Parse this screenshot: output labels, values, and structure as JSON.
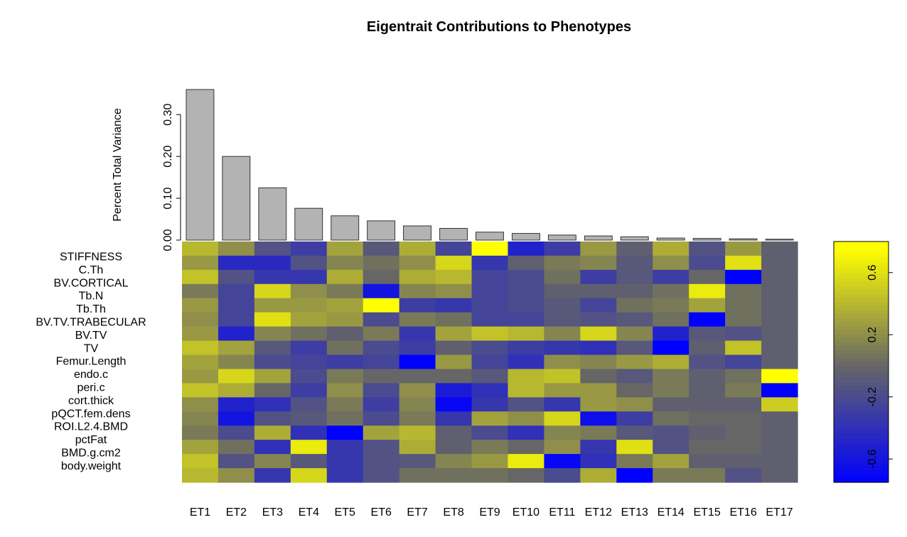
{
  "chart_data": {
    "type": "heatmap",
    "title": "Eigentrait Contributions to Phenotypes",
    "x_categories": [
      "ET1",
      "ET2",
      "ET3",
      "ET4",
      "ET5",
      "ET6",
      "ET7",
      "ET8",
      "ET9",
      "ET10",
      "ET11",
      "ET12",
      "ET13",
      "ET14",
      "ET15",
      "ET16",
      "ET17"
    ],
    "bar_panel": {
      "type": "bar",
      "ylabel": "Percent Total Variance",
      "ylim": [
        0,
        0.36
      ],
      "yticks": [
        "0.00",
        "0.10",
        "0.20",
        "0.30"
      ],
      "ytick_values": [
        0,
        0.1,
        0.2,
        0.3
      ],
      "values": [
        0.36,
        0.2,
        0.125,
        0.076,
        0.058,
        0.046,
        0.034,
        0.028,
        0.019,
        0.016,
        0.012,
        0.01,
        0.008,
        0.005,
        0.004,
        0.003,
        0.002
      ]
    },
    "row_labels": [
      "STIFFNESS",
      "C.Th",
      "BV.CORTICAL",
      "Tb.N",
      "Tb.Th",
      "BV.TV.TRABECULAR",
      "BV.TV",
      "TV",
      "Femur.Length",
      "endo.c",
      "peri.c",
      "cort.thick",
      "pQCT.fem.dens",
      "ROI.L2.4.BMD",
      "pctFat",
      "BMD.g.cm2",
      "body.weight"
    ],
    "heatmap_values": [
      [
        0.4,
        0.2,
        -0.15,
        -0.3,
        0.3,
        -0.1,
        0.35,
        -0.25,
        0.75,
        -0.5,
        -0.3,
        0.25,
        -0.05,
        0.35,
        -0.15,
        0.25,
        -0.05
      ],
      [
        0.25,
        -0.45,
        -0.45,
        -0.15,
        0.15,
        0.05,
        0.2,
        0.55,
        -0.35,
        -0.05,
        0.1,
        0.15,
        -0.1,
        0.2,
        -0.2,
        0.6,
        -0.05
      ],
      [
        0.45,
        -0.15,
        -0.35,
        -0.35,
        0.35,
        0.0,
        0.35,
        0.4,
        -0.25,
        -0.2,
        0.05,
        -0.3,
        -0.1,
        -0.3,
        0.0,
        -0.85,
        -0.05
      ],
      [
        0.1,
        -0.25,
        0.55,
        0.2,
        0.1,
        -0.6,
        0.15,
        0.2,
        -0.25,
        -0.2,
        -0.05,
        -0.05,
        -0.05,
        0.05,
        0.65,
        0.05,
        -0.05
      ],
      [
        0.25,
        -0.25,
        0.25,
        0.25,
        0.3,
        0.75,
        -0.3,
        -0.35,
        -0.25,
        -0.2,
        -0.1,
        -0.25,
        0.05,
        0.1,
        0.3,
        0.05,
        -0.05
      ],
      [
        0.2,
        -0.25,
        0.6,
        0.3,
        0.25,
        -0.2,
        0.1,
        0.05,
        -0.25,
        -0.25,
        -0.1,
        -0.15,
        -0.1,
        0.05,
        -0.8,
        0.05,
        -0.05
      ],
      [
        0.25,
        -0.5,
        0.15,
        0.05,
        -0.05,
        0.1,
        -0.35,
        0.3,
        0.45,
        0.4,
        0.15,
        0.55,
        0.15,
        -0.5,
        -0.1,
        -0.15,
        -0.05
      ],
      [
        0.45,
        0.3,
        -0.1,
        -0.3,
        0.05,
        -0.2,
        -0.3,
        -0.05,
        -0.2,
        -0.3,
        -0.35,
        -0.4,
        -0.1,
        -0.8,
        -0.05,
        0.45,
        -0.05
      ],
      [
        0.3,
        0.15,
        -0.2,
        -0.25,
        -0.3,
        -0.25,
        -0.85,
        0.25,
        -0.25,
        -0.4,
        0.2,
        0.15,
        0.25,
        0.35,
        -0.15,
        -0.25,
        -0.05
      ],
      [
        0.25,
        0.55,
        0.3,
        -0.2,
        0.1,
        0.0,
        0.0,
        0.0,
        -0.1,
        0.4,
        0.45,
        0.0,
        -0.1,
        0.1,
        -0.05,
        0.05,
        0.75
      ],
      [
        0.45,
        0.35,
        0.0,
        -0.3,
        0.2,
        -0.2,
        0.2,
        -0.55,
        -0.4,
        0.4,
        0.25,
        0.25,
        0.0,
        0.1,
        -0.05,
        0.1,
        -0.8
      ],
      [
        0.2,
        -0.5,
        -0.4,
        -0.15,
        0.1,
        -0.3,
        0.15,
        -0.7,
        -0.35,
        -0.15,
        -0.35,
        0.25,
        0.2,
        -0.05,
        -0.05,
        -0.05,
        0.5
      ],
      [
        0.15,
        -0.6,
        -0.15,
        -0.1,
        0.05,
        -0.2,
        0.1,
        -0.35,
        0.3,
        0.2,
        0.55,
        -0.65,
        -0.3,
        0.05,
        0.0,
        0.0,
        -0.05
      ],
      [
        0.1,
        -0.2,
        0.35,
        -0.4,
        -0.85,
        0.3,
        0.4,
        -0.05,
        -0.2,
        -0.4,
        0.15,
        0.1,
        -0.1,
        -0.15,
        -0.05,
        0.0,
        -0.05
      ],
      [
        0.3,
        0.05,
        -0.4,
        0.65,
        -0.35,
        -0.15,
        0.35,
        -0.05,
        0.1,
        0.0,
        0.2,
        -0.35,
        0.6,
        -0.15,
        0.0,
        0.0,
        -0.05
      ],
      [
        0.45,
        -0.15,
        0.15,
        -0.1,
        -0.35,
        -0.15,
        -0.1,
        0.15,
        0.25,
        0.65,
        -0.7,
        -0.4,
        0.1,
        0.3,
        -0.05,
        -0.05,
        -0.05
      ],
      [
        0.4,
        0.2,
        -0.35,
        0.55,
        -0.35,
        -0.15,
        0.05,
        0.05,
        0.05,
        0.0,
        -0.2,
        0.35,
        -0.8,
        0.1,
        0.1,
        -0.15,
        -0.05
      ]
    ],
    "colorbar": {
      "range": [
        -0.75,
        0.8
      ],
      "ticks": [
        "-0.6",
        "-0.2",
        "0.2",
        "0.6"
      ],
      "tick_values": [
        -0.6,
        -0.2,
        0.2,
        0.6
      ],
      "low_color": "#0000ff",
      "mid_color": "#666666",
      "high_color": "#ffff00"
    }
  }
}
